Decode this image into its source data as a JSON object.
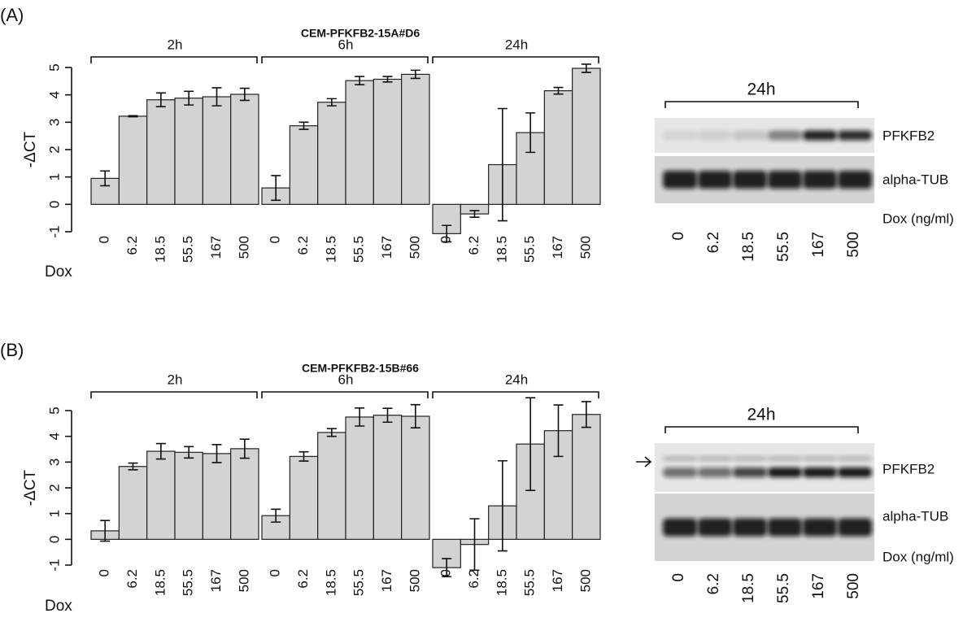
{
  "chart_data": [
    {
      "type": "bar",
      "panel": "(A)",
      "title": "CEM-PFKFB2-15A#D6",
      "ylabel": "-ΔCT",
      "xlabel": "Dox",
      "categories": [
        "0",
        "6.2",
        "18.5",
        "55.5",
        "167",
        "500"
      ],
      "color": "#d3d3d3",
      "ylim": [
        -1,
        5
      ],
      "yticks": [
        -1,
        0,
        1,
        2,
        3,
        4,
        5
      ],
      "groups": [
        {
          "name": "2h",
          "values": [
            0.95,
            3.22,
            3.82,
            3.88,
            3.93,
            4.02
          ],
          "errors": [
            0.27,
            0.02,
            0.25,
            0.25,
            0.33,
            0.22
          ]
        },
        {
          "name": "6h",
          "values": [
            0.6,
            2.87,
            3.73,
            4.52,
            4.57,
            4.75
          ],
          "errors": [
            0.45,
            0.13,
            0.13,
            0.15,
            0.1,
            0.15
          ]
        },
        {
          "name": "24h",
          "values": [
            -1.07,
            -0.35,
            1.45,
            2.62,
            4.15,
            4.97
          ],
          "errors": [
            0.3,
            0.12,
            2.05,
            0.72,
            0.12,
            0.15
          ]
        }
      ]
    },
    {
      "type": "bar",
      "panel": "(B)",
      "title": "CEM-PFKFB2-15B#66",
      "ylabel": "-ΔCT",
      "xlabel": "Dox",
      "categories": [
        "0",
        "6.2",
        "18.5",
        "55.5",
        "167",
        "500"
      ],
      "color": "#d3d3d3",
      "ylim": [
        -1,
        5
      ],
      "yticks": [
        -1,
        0,
        1,
        2,
        3,
        4,
        5
      ],
      "groups": [
        {
          "name": "2h",
          "values": [
            0.33,
            2.83,
            3.42,
            3.38,
            3.33,
            3.52
          ],
          "errors": [
            0.4,
            0.13,
            0.3,
            0.22,
            0.35,
            0.37
          ]
        },
        {
          "name": "6h",
          "values": [
            0.92,
            3.22,
            4.15,
            4.75,
            4.82,
            4.78
          ],
          "errors": [
            0.25,
            0.18,
            0.15,
            0.35,
            0.27,
            0.45
          ]
        },
        {
          "name": "24h",
          "values": [
            -1.1,
            -0.2,
            1.3,
            3.7,
            4.22,
            4.85
          ],
          "errors": [
            0.35,
            1.0,
            1.75,
            1.8,
            1.0,
            0.5
          ]
        }
      ]
    }
  ],
  "blots": [
    {
      "time": "24h",
      "rows": [
        "PFKFB2",
        "alpha-TUB"
      ],
      "unit": "Dox (ng/ml)",
      "lanes": [
        "0",
        "6.2",
        "18.5",
        "55.5",
        "167",
        "500"
      ]
    },
    {
      "time": "24h",
      "rows": [
        "PFKFB2",
        "alpha-TUB"
      ],
      "unit": "Dox (ng/ml)",
      "lanes": [
        "0",
        "6.2",
        "18.5",
        "55.5",
        "167",
        "500"
      ]
    }
  ]
}
